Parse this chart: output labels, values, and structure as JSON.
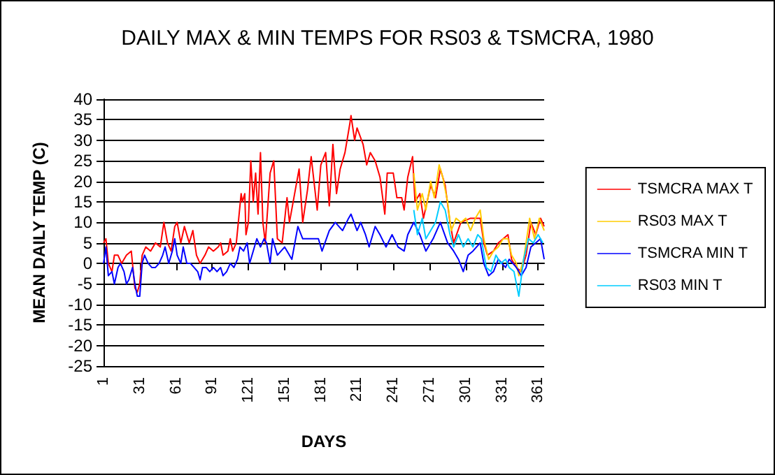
{
  "chart_data": {
    "type": "line",
    "title": "DAILY MAX & MIN TEMPS FOR RS03 & TSMCRA, 1980",
    "xlabel": "DAYS",
    "ylabel": "MEAN DAILY TEMP (C)",
    "xlim": [
      1,
      366
    ],
    "xticks": [
      1,
      31,
      61,
      91,
      121,
      151,
      181,
      211,
      241,
      271,
      301,
      331,
      361
    ],
    "ylim": [
      -25,
      40
    ],
    "yticks": [
      -25,
      -20,
      -15,
      -10,
      -5,
      0,
      5,
      10,
      15,
      20,
      25,
      30,
      35,
      40
    ],
    "grid": "y",
    "legend": "right",
    "marker": "none",
    "line_style": "solid",
    "series": [
      {
        "name": "TSMCRA MAX T",
        "color": "#ff0000",
        "x": [
          1,
          3,
          5,
          8,
          10,
          13,
          16,
          20,
          24,
          27,
          29,
          31,
          33,
          36,
          40,
          44,
          48,
          51,
          54,
          57,
          60,
          62,
          65,
          68,
          72,
          75,
          78,
          81,
          85,
          88,
          92,
          96,
          98,
          100,
          104,
          106,
          108,
          111,
          113,
          115,
          116,
          118,
          119,
          121,
          123,
          125,
          127,
          129,
          131,
          133,
          135,
          139,
          142,
          145,
          149,
          153,
          155,
          163,
          166,
          170,
          173,
          178,
          181,
          185,
          188,
          191,
          194,
          197,
          201,
          205,
          206,
          209,
          211,
          216,
          219,
          222,
          226,
          230,
          234,
          236,
          241,
          244,
          248,
          250,
          253,
          257,
          259,
          263,
          266,
          272,
          276,
          280,
          284,
          288,
          291,
          297,
          305,
          313,
          316,
          319,
          324,
          328,
          336,
          339,
          343,
          347,
          351,
          355,
          359,
          363,
          366
        ],
        "values": [
          5,
          6,
          0,
          -2,
          2,
          2,
          0,
          2,
          3,
          -6,
          -7,
          -5,
          2,
          4,
          3,
          5,
          4,
          10,
          5,
          3,
          9,
          10,
          5,
          9,
          5,
          8,
          2,
          0,
          2,
          4,
          3,
          4,
          5,
          2,
          3,
          6,
          3,
          5,
          11,
          17,
          15,
          17,
          7,
          10,
          25,
          15,
          22,
          12,
          27,
          10,
          5,
          22,
          25,
          6,
          5,
          16,
          10,
          23,
          10,
          18,
          26,
          13,
          24,
          27,
          14,
          29,
          17,
          23,
          27,
          34,
          36,
          30,
          33,
          29,
          24,
          27,
          25,
          21,
          12,
          22,
          22,
          16,
          16,
          13,
          21,
          26,
          15,
          17,
          11,
          19,
          16,
          23,
          19,
          10,
          5,
          10,
          11,
          11,
          5,
          2,
          3,
          5,
          7,
          1,
          -1,
          -2,
          2,
          10,
          7,
          11,
          9
        ]
      },
      {
        "name": "RS03 MAX T",
        "color": "#ffcc00",
        "x": [
          258,
          261,
          265,
          268,
          272,
          275,
          279,
          282,
          286,
          289,
          293,
          297,
          301,
          305,
          309,
          313,
          316,
          320,
          324,
          328,
          332,
          336,
          339,
          343,
          345,
          349,
          354,
          358,
          362,
          366
        ],
        "values": [
          22,
          13,
          17,
          13,
          20,
          16,
          24,
          21,
          15,
          8,
          11,
          10,
          11,
          8,
          11,
          13,
          6,
          1,
          3,
          4,
          6,
          6,
          2,
          0,
          -3,
          1,
          11,
          6,
          11,
          8
        ]
      },
      {
        "name": "TSMCRA MIN T",
        "color": "#0000ff",
        "x": [
          1,
          3,
          5,
          8,
          10,
          13,
          15,
          18,
          20,
          22,
          25,
          27,
          29,
          31,
          33,
          35,
          38,
          41,
          44,
          47,
          50,
          52,
          55,
          58,
          60,
          62,
          65,
          67,
          70,
          73,
          76,
          79,
          81,
          83,
          86,
          89,
          92,
          95,
          98,
          100,
          103,
          106,
          109,
          112,
          114,
          117,
          120,
          122,
          125,
          128,
          131,
          134,
          136,
          139,
          141,
          145,
          151,
          157,
          162,
          166,
          172,
          179,
          182,
          188,
          193,
          199,
          204,
          206,
          211,
          214,
          218,
          221,
          226,
          230,
          235,
          240,
          245,
          250,
          253,
          258,
          263,
          268,
          274,
          280,
          286,
          291,
          295,
          299,
          303,
          307,
          313,
          316,
          320,
          324,
          328,
          334,
          337,
          343,
          347,
          351,
          355,
          359,
          363,
          366
        ],
        "values": [
          0,
          4,
          -3,
          -2,
          -5,
          -1,
          0,
          -2,
          -5,
          -4,
          -1,
          -5,
          -8,
          -8,
          0,
          2,
          0,
          -1,
          -1,
          0,
          2,
          4,
          0,
          3,
          6,
          2,
          0,
          4,
          0,
          0,
          -1,
          -2,
          -4,
          -1,
          -1,
          -2,
          -1,
          -2,
          -1,
          -3,
          -2,
          0,
          -1,
          1,
          4,
          3,
          5,
          0,
          3,
          6,
          4,
          6,
          5,
          0,
          6,
          2,
          4,
          1,
          9,
          6,
          6,
          6,
          3,
          8,
          10,
          8,
          11,
          12,
          8,
          10,
          7,
          4,
          9,
          7,
          4,
          7,
          4,
          3,
          7,
          10,
          7,
          3,
          6,
          10,
          5,
          3,
          1,
          -2,
          2,
          3,
          5,
          0,
          -3,
          -2,
          1,
          -1,
          1,
          -1,
          -3,
          -1,
          4,
          5,
          6,
          1
        ]
      },
      {
        "name": "RS03 MIN T",
        "color": "#00ccff",
        "x": [
          258,
          261,
          265,
          268,
          272,
          276,
          280,
          284,
          288,
          291,
          295,
          299,
          303,
          307,
          311,
          314,
          318,
          322,
          326,
          330,
          334,
          337,
          341,
          345,
          349,
          353,
          357,
          361,
          365
        ],
        "values": [
          13,
          7,
          11,
          6,
          8,
          10,
          15,
          13,
          7,
          4,
          7,
          4,
          6,
          4,
          7,
          6,
          -1,
          -2,
          2,
          0,
          1,
          -1,
          -2,
          -8,
          1,
          6,
          5,
          7,
          5
        ]
      }
    ]
  }
}
